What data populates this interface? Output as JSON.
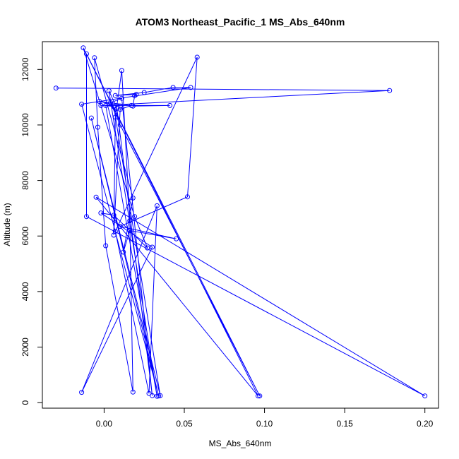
{
  "chart_data": {
    "type": "line",
    "title": "ATOM3 Northeast_Pacific_1 MS_Abs_640nm",
    "xlabel": "MS_Abs_640nm",
    "ylabel": "Altitude (m)",
    "xlim": [
      -0.0385,
      0.2085
    ],
    "ylim": [
      -200,
      13000
    ],
    "xticks": [
      0.0,
      0.05,
      0.1,
      0.15,
      0.2
    ],
    "xtick_labels": [
      "0.00",
      "0.05",
      "0.10",
      "0.15",
      "0.20"
    ],
    "yticks": [
      0,
      2000,
      4000,
      6000,
      8000,
      10000,
      12000
    ],
    "ytick_labels": [
      "0",
      "2000",
      "4000",
      "6000",
      "8000",
      "10000",
      "12000"
    ],
    "grid": false,
    "series": [
      {
        "color": "#0000ff",
        "marker": "open-circle",
        "points": [
          [
            -0.03,
            11330
          ],
          [
            0.178,
            11240
          ],
          [
            -0.002,
            10700
          ],
          [
            0.041,
            10700
          ],
          [
            0.018,
            10680
          ],
          [
            0.019,
            11050
          ],
          [
            0.02,
            11100
          ],
          [
            0.007,
            11060
          ],
          [
            0.025,
            11170
          ],
          [
            0.043,
            11350
          ],
          [
            0.054,
            11350
          ],
          [
            -0.014,
            10750
          ],
          [
            0.034,
            240
          ],
          [
            -0.008,
            10250
          ],
          [
            0.035,
            250
          ],
          [
            0.006,
            10660
          ],
          [
            0.001,
            10700
          ],
          [
            0.033,
            230
          ],
          [
            0.003,
            11230
          ],
          [
            0.008,
            10600
          ],
          [
            0.03,
            250
          ],
          [
            0.011,
            10960
          ],
          [
            0.004,
            10800
          ],
          [
            0.01,
            10000
          ],
          [
            0.097,
            240
          ],
          [
            -0.011,
            12560
          ],
          [
            -0.011,
            6700
          ],
          [
            0.2,
            240
          ],
          [
            -0.005,
            7400
          ],
          [
            0.096,
            240
          ],
          [
            -0.013,
            12780
          ],
          [
            0.019,
            6700
          ],
          [
            0.027,
            5570
          ],
          [
            0.006,
            6750
          ],
          [
            -0.002,
            6830
          ],
          [
            0.03,
            5600
          ],
          [
            -0.014,
            370
          ],
          [
            0.033,
            7090
          ],
          [
            0.028,
            330
          ],
          [
            0.007,
            6170
          ],
          [
            0.058,
            12440
          ],
          [
            0.052,
            7410
          ],
          [
            0.01,
            6350
          ],
          [
            0.045,
            5900
          ],
          [
            0.016,
            6200
          ],
          [
            0.012,
            5420
          ],
          [
            0.018,
            7370
          ],
          [
            -0.006,
            12420
          ],
          [
            -0.004,
            9920
          ],
          [
            0.001,
            5650
          ],
          [
            0.018,
            380
          ],
          [
            0.016,
            6550
          ],
          [
            0.011,
            11960
          ],
          [
            0.007,
            10280
          ],
          [
            0.006,
            6030
          ],
          [
            0.01,
            10560
          ],
          [
            0.017,
            10700
          ],
          [
            -0.003,
            10850
          ],
          [
            0.01,
            10680
          ]
        ]
      }
    ]
  }
}
